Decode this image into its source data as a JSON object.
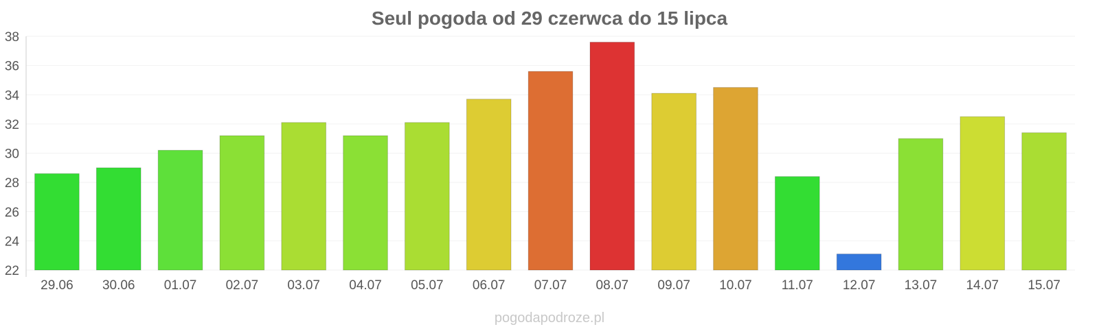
{
  "chart_data": {
    "type": "bar",
    "title": "Seul pogoda od 29 czerwca do 15 lipca",
    "xlabel": "",
    "ylabel": "",
    "categories": [
      "29.06",
      "30.06",
      "01.07",
      "02.07",
      "03.07",
      "04.07",
      "05.07",
      "06.07",
      "07.07",
      "08.07",
      "09.07",
      "10.07",
      "11.07",
      "12.07",
      "13.07",
      "14.07",
      "15.07"
    ],
    "values": [
      28.6,
      29.0,
      30.2,
      31.2,
      32.1,
      31.2,
      32.1,
      33.7,
      35.6,
      37.6,
      34.1,
      34.5,
      28.4,
      23.1,
      31.0,
      32.5,
      31.4
    ],
    "colors": [
      "#33dd33",
      "#33dd33",
      "#5ee03a",
      "#8be035",
      "#aadd33",
      "#8be035",
      "#aadd33",
      "#ddcc33",
      "#dd6e33",
      "#dd3333",
      "#ddcc33",
      "#dda533",
      "#33dd33",
      "#3377dd",
      "#8be035",
      "#ccdd33",
      "#aadd33"
    ],
    "ylim": [
      22,
      38
    ],
    "yticks": [
      22,
      24,
      26,
      28,
      30,
      32,
      34,
      36,
      38
    ],
    "grid": true,
    "legend": "none"
  },
  "watermark": "pogodapodroze.pl"
}
